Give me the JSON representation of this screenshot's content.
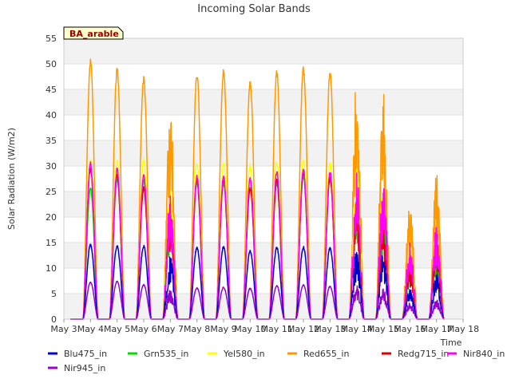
{
  "chart_data": {
    "type": "line",
    "title": "Incoming Solar Bands",
    "xlabel": "Time",
    "ylabel": "Solar Radiation (W/m2)",
    "site_label": "BA_arable",
    "ylim": [
      0,
      55
    ],
    "yticks": [
      0,
      5,
      10,
      15,
      20,
      25,
      30,
      35,
      40,
      45,
      50,
      55
    ],
    "xlim_days": [
      3,
      18
    ],
    "xticks": [
      "May 3",
      "May 4",
      "May 5",
      "May 6",
      "May 7",
      "May 8",
      "May 9",
      "May 10",
      "May 11",
      "May 12",
      "May 13",
      "May 14",
      "May 15",
      "May 16",
      "May 17",
      "May 18"
    ],
    "grid": true,
    "legend_position": "bottom",
    "x": [
      "May 4",
      "May 5",
      "May 6",
      "May 7",
      "May 8",
      "May 9",
      "May 10",
      "May 11",
      "May 12",
      "May 13",
      "May 14",
      "May 15",
      "May 16",
      "May 17"
    ],
    "x_note": "daily peak value at local solar noon",
    "series": [
      {
        "name": "Blu475_in",
        "color": "#0000cc",
        "values": [
          14.8,
          14.5,
          14.5,
          12.5,
          14.2,
          14.3,
          13.5,
          14.2,
          14.3,
          14.1,
          13.5,
          13.2,
          6.5,
          9.0
        ]
      },
      {
        "name": "Grn535_in",
        "color": "#00dd00",
        "values": [
          26.0,
          28.0,
          27.5,
          22.0,
          27.0,
          27.0,
          26.0,
          27.0,
          28.5,
          28.0,
          23.0,
          22.0,
          12.0,
          13.0
        ]
      },
      {
        "name": "Yel580_in",
        "color": "#ffff00",
        "values": [
          31.5,
          31.5,
          31.5,
          27.0,
          31.0,
          31.0,
          30.5,
          31.0,
          31.5,
          31.0,
          30.0,
          28.0,
          15.0,
          17.0
        ]
      },
      {
        "name": "Red655_in",
        "color": "#ff9900",
        "values": [
          51.2,
          49.5,
          47.7,
          42.5,
          48.7,
          49.0,
          47.0,
          49.0,
          49.7,
          49.0,
          48.2,
          47.0,
          24.2,
          29.0
        ]
      },
      {
        "name": "Redg715_in",
        "color": "#dd0000",
        "values": [
          30.0,
          28.5,
          26.0,
          23.0,
          27.5,
          27.5,
          26.0,
          27.5,
          29.0,
          28.0,
          24.0,
          20.0,
          11.0,
          16.0
        ]
      },
      {
        "name": "Nir840_in",
        "color": "#ff00ff",
        "values": [
          30.8,
          29.7,
          28.5,
          25.2,
          28.2,
          28.2,
          28.0,
          29.3,
          29.7,
          29.0,
          28.9,
          28.5,
          15.2,
          18.5
        ]
      },
      {
        "name": "Nir945_in",
        "color": "#9900cc",
        "values": [
          7.3,
          7.5,
          6.8,
          5.8,
          6.2,
          6.3,
          6.1,
          6.6,
          6.8,
          6.5,
          6.6,
          6.0,
          3.2,
          3.8
        ]
      }
    ]
  }
}
